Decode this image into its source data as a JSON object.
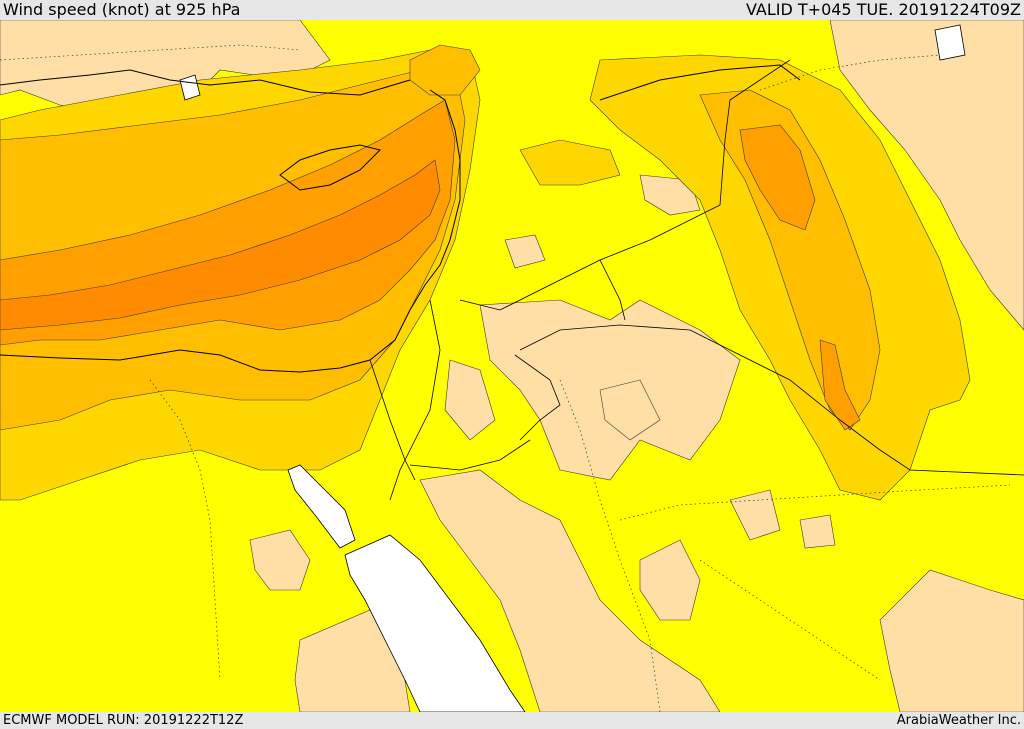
{
  "header": {
    "title": "Wind speed (knot) at 925 hPa",
    "valid": "VALID T+045 TUE. 20191224T09Z"
  },
  "footer": {
    "model_run": "ECMWF MODEL RUN: 20191222T12Z",
    "credit": "ArabiaWeather Inc."
  },
  "map": {
    "colors": {
      "below_10": "#ffdfa6",
      "band_10_15": "#ffff00",
      "band_15_20": "#ffd700",
      "band_20_25": "#ffbf00",
      "band_25_30": "#ff9f00",
      "band_30_35": "#ff8c00",
      "water_masked": "#ffffff"
    }
  }
}
